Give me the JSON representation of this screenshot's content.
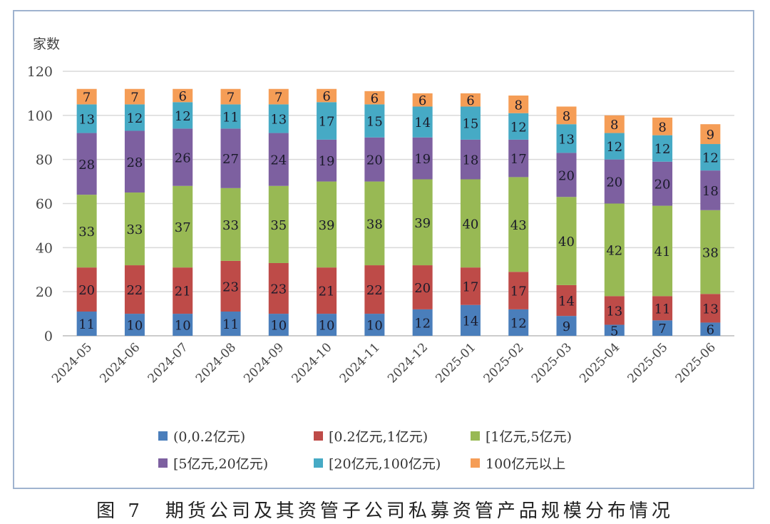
{
  "caption": "图 7　期货公司及其资管子公司私募资管产品规模分布情况",
  "chart_data": {
    "type": "bar",
    "stacked": true,
    "title": "图 7　期货公司及其资管子公司私募资管产品规模分布情况",
    "ylabel": "家数",
    "xlabel": "",
    "ylim": [
      0,
      120
    ],
    "yticks": [
      0,
      20,
      40,
      60,
      80,
      100,
      120
    ],
    "grid": true,
    "legend_position": "bottom",
    "categories": [
      "2024-05",
      "2024-06",
      "2024-07",
      "2024-08",
      "2024-09",
      "2024-10",
      "2024-11",
      "2024-12",
      "2025-01",
      "2025-02",
      "2025-03",
      "2025-04",
      "2025-05",
      "2025-06"
    ],
    "series": [
      {
        "name": "(0,0.2亿元)",
        "color": "#4a7ebb",
        "values": [
          11,
          10,
          10,
          11,
          10,
          10,
          10,
          12,
          14,
          12,
          9,
          5,
          7,
          6
        ]
      },
      {
        "name": "[0.2亿元,1亿元)",
        "color": "#be4b48",
        "values": [
          20,
          22,
          21,
          23,
          23,
          21,
          22,
          20,
          17,
          17,
          14,
          13,
          11,
          13
        ]
      },
      {
        "name": "[1亿元,5亿元)",
        "color": "#98b954",
        "values": [
          33,
          33,
          37,
          33,
          35,
          39,
          38,
          39,
          40,
          43,
          40,
          42,
          41,
          38
        ]
      },
      {
        "name": "[5亿元,20亿元)",
        "color": "#7d60a0",
        "values": [
          28,
          28,
          26,
          27,
          24,
          19,
          20,
          19,
          18,
          17,
          20,
          20,
          20,
          18
        ]
      },
      {
        "name": "[20亿元,100亿元)",
        "color": "#46aac5",
        "values": [
          13,
          12,
          12,
          11,
          13,
          17,
          15,
          14,
          15,
          12,
          13,
          12,
          12,
          12
        ]
      },
      {
        "name": "100亿元以上",
        "color": "#f59d56",
        "values": [
          7,
          7,
          6,
          7,
          7,
          6,
          6,
          6,
          6,
          8,
          8,
          8,
          8,
          9
        ]
      }
    ]
  }
}
